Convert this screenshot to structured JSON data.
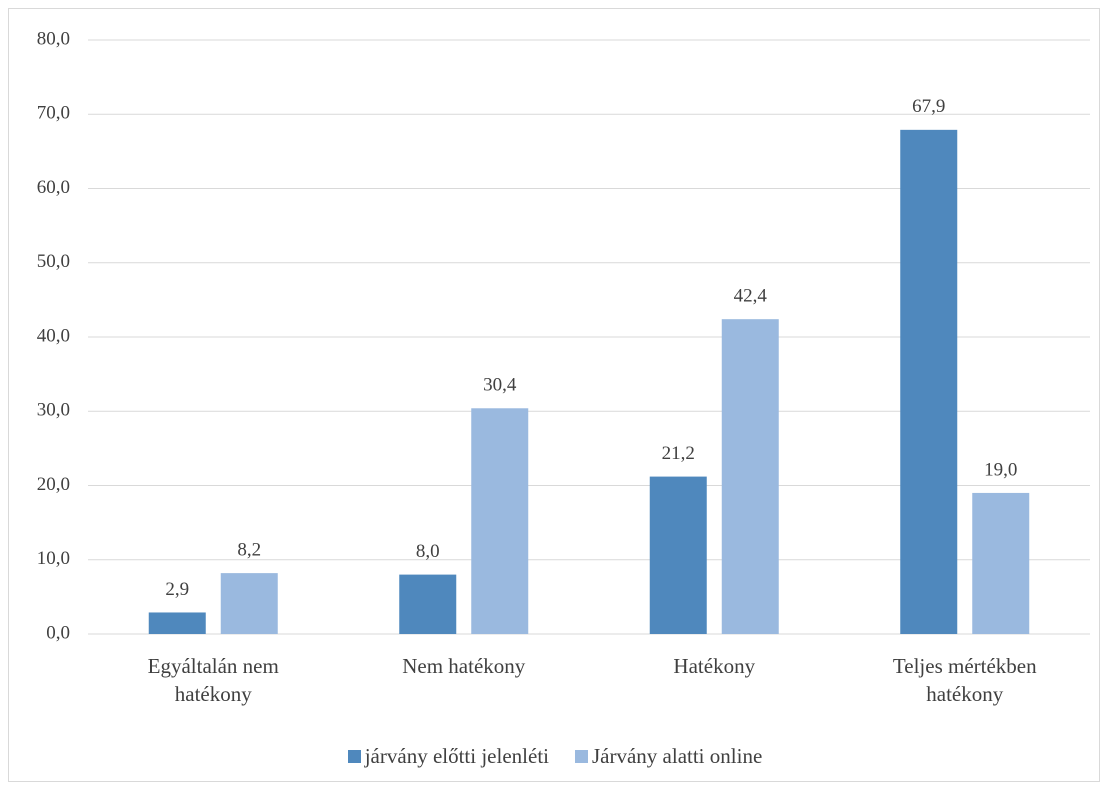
{
  "chart_data": {
    "type": "bar",
    "categories": [
      "Egyáltalán nem hatékony",
      "Nem hatékony",
      "Hatékony",
      "Teljes mértékben hatékony"
    ],
    "series": [
      {
        "name": "járvány előtti jelenléti",
        "color": "#4f88bd",
        "values": [
          2.9,
          8.0,
          21.2,
          67.9
        ],
        "value_labels": [
          "2,9",
          "8,0",
          "21,2",
          "67,9"
        ]
      },
      {
        "name": "Járvány alatti online",
        "color": "#9ab9df",
        "values": [
          8.2,
          30.4,
          42.4,
          19.0
        ],
        "value_labels": [
          "8,2",
          "30,4",
          "42,4",
          "19,0"
        ]
      }
    ],
    "ylim": [
      0,
      80
    ],
    "yticks": [
      {
        "value": 0,
        "label": "0,0"
      },
      {
        "value": 10,
        "label": "10,0"
      },
      {
        "value": 20,
        "label": "20,0"
      },
      {
        "value": 30,
        "label": "30,0"
      },
      {
        "value": 40,
        "label": "40,0"
      },
      {
        "value": 50,
        "label": "50,0"
      },
      {
        "value": 60,
        "label": "60,0"
      },
      {
        "value": 70,
        "label": "70,0"
      },
      {
        "value": 80,
        "label": "80,0"
      }
    ],
    "grid": true,
    "legend": "bottom"
  }
}
